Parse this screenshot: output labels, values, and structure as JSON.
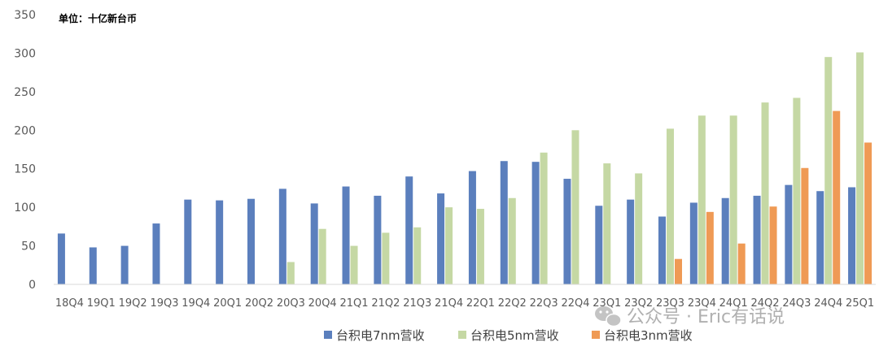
{
  "chart_data": {
    "type": "bar",
    "unit_label": "单位：十亿新台币",
    "ylim": [
      0,
      350
    ],
    "yticks": [
      0,
      50,
      100,
      150,
      200,
      250,
      300,
      350
    ],
    "grid": false,
    "legend_position": "bottom",
    "categories": [
      "18Q4",
      "19Q1",
      "19Q2",
      "19Q3",
      "19Q4",
      "20Q1",
      "20Q2",
      "20Q3",
      "20Q4",
      "21Q1",
      "21Q2",
      "21Q3",
      "21Q4",
      "22Q1",
      "22Q2",
      "22Q3",
      "22Q4",
      "23Q1",
      "23Q2",
      "23Q3",
      "23Q4",
      "24Q1",
      "24Q2",
      "24Q3",
      "24Q4",
      "25Q1"
    ],
    "series": [
      {
        "name": "台积电7nm营收",
        "color": "#5b7fbd",
        "values": [
          66,
          48,
          50,
          79,
          110,
          109,
          111,
          124,
          105,
          127,
          115,
          140,
          118,
          147,
          160,
          159,
          137,
          102,
          110,
          88,
          106,
          112,
          115,
          129,
          121,
          126
        ]
      },
      {
        "name": "台积电5nm营收",
        "color": "#c5d8a4",
        "values": [
          null,
          null,
          null,
          null,
          null,
          null,
          null,
          29,
          72,
          50,
          67,
          74,
          100,
          98,
          112,
          171,
          200,
          157,
          144,
          202,
          219,
          219,
          236,
          242,
          295,
          301
        ]
      },
      {
        "name": "台积电3nm营收",
        "color": "#ef9a55",
        "values": [
          null,
          null,
          null,
          null,
          null,
          null,
          null,
          null,
          null,
          null,
          null,
          null,
          null,
          null,
          null,
          null,
          null,
          null,
          null,
          33,
          94,
          53,
          101,
          151,
          225,
          184
        ]
      }
    ]
  },
  "watermark": {
    "icon": "wechat-icon",
    "text": "公众号 · Eric有话说"
  }
}
